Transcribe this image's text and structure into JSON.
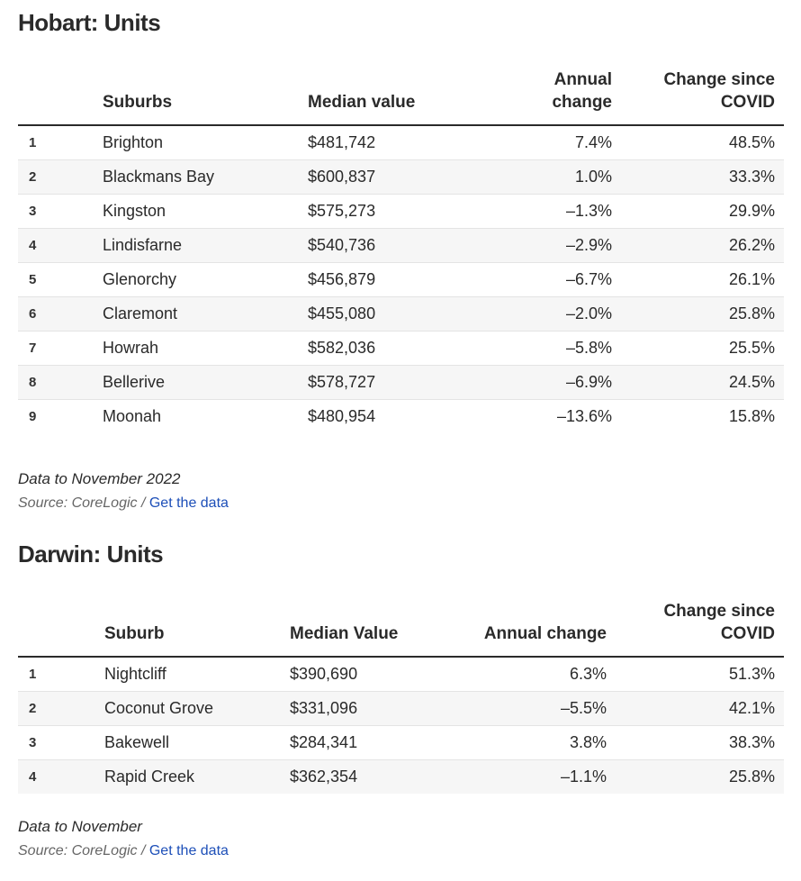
{
  "hobart": {
    "title": "Hobart: Units",
    "headers": {
      "suburb": "Suburbs",
      "median": "Median value",
      "annual_line1": "Annual",
      "annual_line2": "change",
      "covid_line1": "Change since",
      "covid_line2": "COVID"
    },
    "rows": [
      {
        "rank": "1",
        "suburb": "Brighton",
        "median": "$481,742",
        "annual": "7.4%",
        "covid": "48.5%"
      },
      {
        "rank": "2",
        "suburb": "Blackmans Bay",
        "median": "$600,837",
        "annual": "1.0%",
        "covid": "33.3%"
      },
      {
        "rank": "3",
        "suburb": "Kingston",
        "median": "$575,273",
        "annual": "–1.3%",
        "covid": "29.9%"
      },
      {
        "rank": "4",
        "suburb": "Lindisfarne",
        "median": "$540,736",
        "annual": "–2.9%",
        "covid": "26.2%"
      },
      {
        "rank": "5",
        "suburb": "Glenorchy",
        "median": "$456,879",
        "annual": "–6.7%",
        "covid": "26.1%"
      },
      {
        "rank": "6",
        "suburb": "Claremont",
        "median": "$455,080",
        "annual": "–2.0%",
        "covid": "25.8%"
      },
      {
        "rank": "7",
        "suburb": "Howrah",
        "median": "$582,036",
        "annual": "–5.8%",
        "covid": "25.5%"
      },
      {
        "rank": "8",
        "suburb": "Bellerive",
        "median": "$578,727",
        "annual": "–6.9%",
        "covid": "24.5%"
      },
      {
        "rank": "9",
        "suburb": "Moonah",
        "median": "$480,954",
        "annual": "–13.6%",
        "covid": "15.8%"
      }
    ],
    "note": "Data to November 2022",
    "source_prefix": "Source: CoreLogic / ",
    "source_link": "Get the data"
  },
  "darwin": {
    "title": "Darwin: Units",
    "headers": {
      "suburb": "Suburb",
      "median": "Median Value",
      "annual": "Annual change",
      "covid_line1": "Change since",
      "covid_line2": "COVID"
    },
    "rows": [
      {
        "rank": "1",
        "suburb": "Nightcliff",
        "median": "$390,690",
        "annual": "6.3%",
        "covid": "51.3%"
      },
      {
        "rank": "2",
        "suburb": "Coconut Grove",
        "median": "$331,096",
        "annual": "–5.5%",
        "covid": "42.1%"
      },
      {
        "rank": "3",
        "suburb": "Bakewell",
        "median": "$284,341",
        "annual": "3.8%",
        "covid": "38.3%"
      },
      {
        "rank": "4",
        "suburb": "Rapid Creek",
        "median": "$362,354",
        "annual": "–1.1%",
        "covid": "25.8%"
      }
    ],
    "note": "Data to November",
    "source_prefix": "Source: CoreLogic / ",
    "source_link": "Get the data"
  }
}
